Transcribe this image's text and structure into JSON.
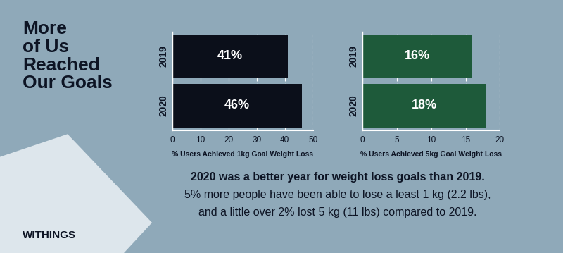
{
  "heading": "More\nof Us\nReached\nOur Goals",
  "brand": "WITHINGS",
  "caption": [
    "2020 was a better year for weight loss goals than 2019.",
    "5% more people have been able to lose a least 1 kg (2.2 lbs),",
    "and a little over 2% lost 5 kg (11 lbs) compared to 2019."
  ],
  "chart_data": [
    {
      "type": "bar",
      "orientation": "horizontal",
      "categories": [
        "2019",
        "2020"
      ],
      "values": [
        41,
        46
      ],
      "value_labels": [
        "41%",
        "46%"
      ],
      "data_labels": true,
      "color": "#0b0f1a",
      "xlabel": "% Users Achieved 1kg Goal Weight Loss",
      "xlim": [
        0,
        50
      ],
      "xticks": [
        0,
        10,
        20,
        30,
        40,
        50
      ],
      "grid": true
    },
    {
      "type": "bar",
      "orientation": "horizontal",
      "categories": [
        "2019",
        "2020"
      ],
      "values": [
        16,
        18
      ],
      "value_labels": [
        "16%",
        "18%"
      ],
      "data_labels": true,
      "color": "#1e5a3a",
      "xlabel": "% Users Achieved 5kg Goal Weight Loss",
      "xlim": [
        0,
        20
      ],
      "xticks": [
        0,
        5,
        10,
        15,
        20
      ],
      "grid": true
    }
  ]
}
